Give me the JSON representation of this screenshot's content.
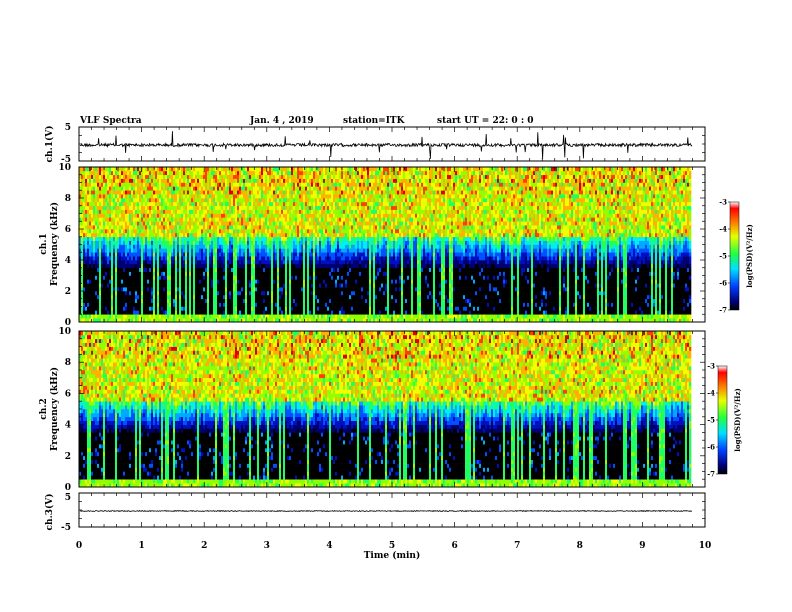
{
  "header": {
    "title": "VLF Spectra",
    "date": "Jan. 4  , 2019",
    "station": "station=ITK",
    "start": "start  UT =   22: 0   : 0"
  },
  "chart_data": [
    {
      "type": "line",
      "name": "ch1-waveform",
      "ylabel": "ch.1(V)",
      "ylim": [
        -5,
        5
      ],
      "yticks": [
        "5",
        "-5"
      ],
      "xlim": [
        0,
        10
      ]
    },
    {
      "type": "heatmap",
      "name": "ch1-spectrogram",
      "ylabel_line1": "ch.1",
      "ylabel_line2": "Frequency  (kHz)",
      "ylim": [
        0,
        10
      ],
      "yticks": [
        "0",
        "2",
        "4",
        "6",
        "8",
        "10"
      ],
      "xlim": [
        0,
        10
      ],
      "data_end_min": 9.8,
      "colorbar": {
        "label": "log(PSD)(V²/Hz)",
        "range": [
          -7,
          -3
        ],
        "ticks": [
          "-3",
          "-4",
          "-5",
          "-6",
          "-7"
        ]
      }
    },
    {
      "type": "heatmap",
      "name": "ch2-spectrogram",
      "ylabel_line1": "ch.2",
      "ylabel_line2": "Frequency  (kHz)",
      "ylim": [
        0,
        10
      ],
      "yticks": [
        "0",
        "2",
        "4",
        "6",
        "8",
        "10"
      ],
      "xlim": [
        0,
        10
      ],
      "data_end_min": 9.8,
      "colorbar": {
        "label": "log(PSD)(V²/Hz)",
        "range": [
          -7,
          -3
        ],
        "ticks": [
          "-3",
          "-4",
          "-5",
          "-6",
          "-7"
        ]
      }
    },
    {
      "type": "line",
      "name": "ch3-waveform",
      "ylabel": "ch.3(V)",
      "ylim": [
        -5,
        5
      ],
      "yticks": [
        "5",
        "-5"
      ],
      "xlim": [
        0,
        10
      ],
      "xlabel": "Time  (min)",
      "xticks": [
        "0",
        "1",
        "2",
        "3",
        "4",
        "5",
        "6",
        "7",
        "8",
        "9",
        "10"
      ]
    }
  ]
}
